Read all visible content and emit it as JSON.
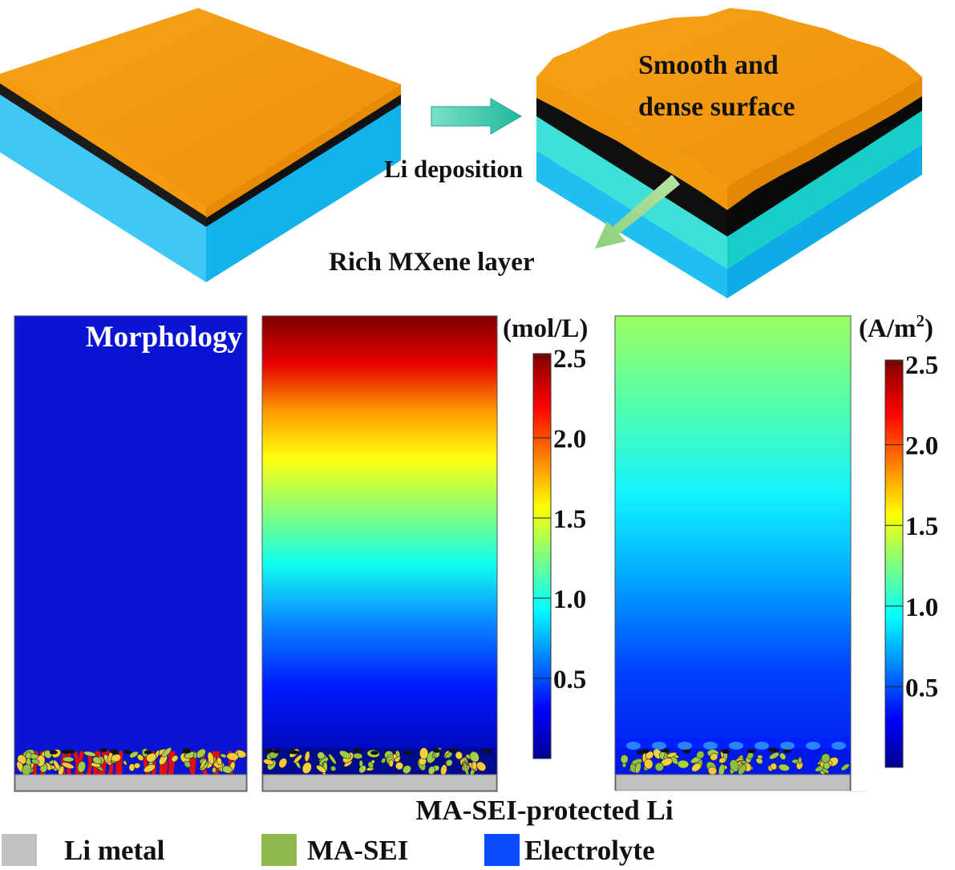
{
  "top_diagram": {
    "process_label": "Li deposition",
    "surface_label_line1": "Smooth and",
    "surface_label_line2": "dense surface",
    "layer_label": "Rich MXene layer"
  },
  "panels": {
    "morphology_label": "Morphology",
    "caption": "MA-SEI-protected Li"
  },
  "colorbars": [
    {
      "unit": "(mol/L)",
      "ticks": [
        "2.5",
        "2.0",
        "1.5",
        "1.0",
        "0.5"
      ]
    },
    {
      "unit_base": "(A/m",
      "unit_sup": "2",
      "unit_close": ")",
      "ticks": [
        "2.5",
        "2.0",
        "1.5",
        "1.0",
        "0.5"
      ]
    }
  ],
  "legend": [
    {
      "label": "Li metal",
      "color": "#c0c0c0"
    },
    {
      "label": "MA-SEI",
      "color": "#8db84a"
    },
    {
      "label": "Electrolyte",
      "color": "#0a4dff"
    }
  ],
  "colors": {
    "substrate_orange": "#f39a0d",
    "substrate_blue": "#1cbdf2",
    "mxene_cyan": "#22e0d4",
    "morphology_blue": "#0a14d2",
    "arrow_teal": "#33c4a6"
  }
}
